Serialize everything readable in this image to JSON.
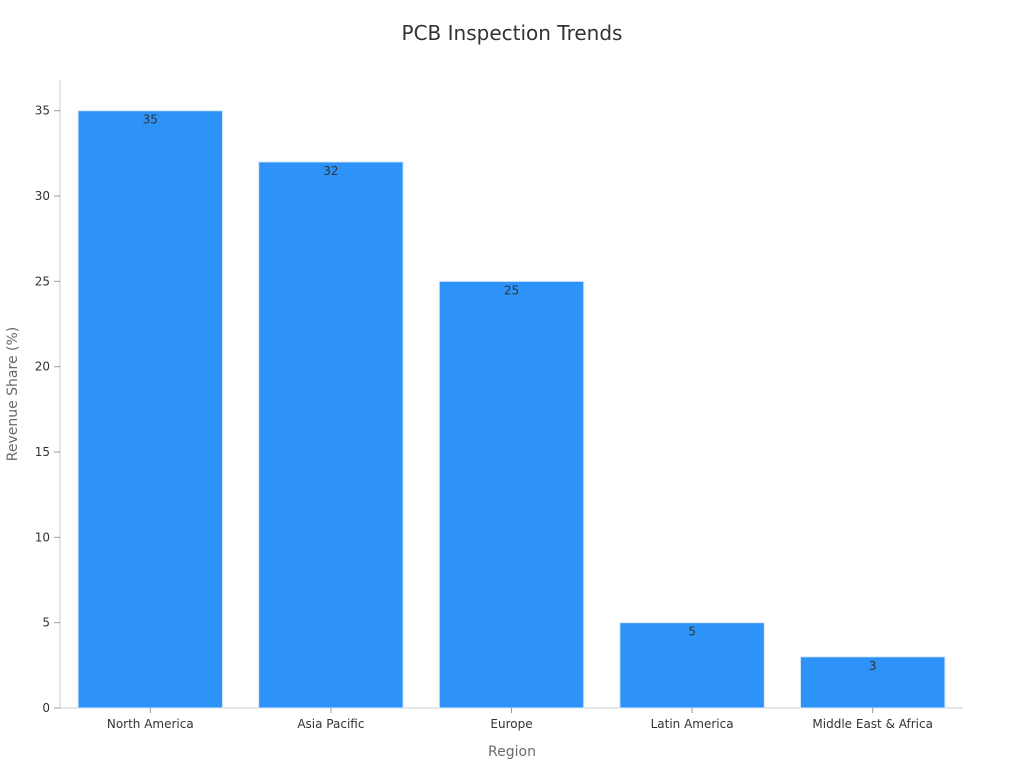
{
  "chart_data": {
    "type": "bar",
    "title": "PCB Inspection Trends",
    "xlabel": "Region",
    "ylabel": "Revenue Share (%)",
    "categories": [
      "North America",
      "Asia Pacific",
      "Europe",
      "Latin America",
      "Middle East & Africa"
    ],
    "series": [
      {
        "values": [
          35,
          32,
          25,
          5,
          3
        ]
      }
    ],
    "data_labels": [
      "35",
      "32",
      "25",
      "5",
      "3"
    ],
    "y_ticks": [
      0,
      5,
      10,
      15,
      20,
      25,
      30,
      35
    ],
    "ylim": [
      0,
      36.8
    ],
    "grid": false,
    "legend": "none",
    "bar_color": "#2e93f8"
  }
}
